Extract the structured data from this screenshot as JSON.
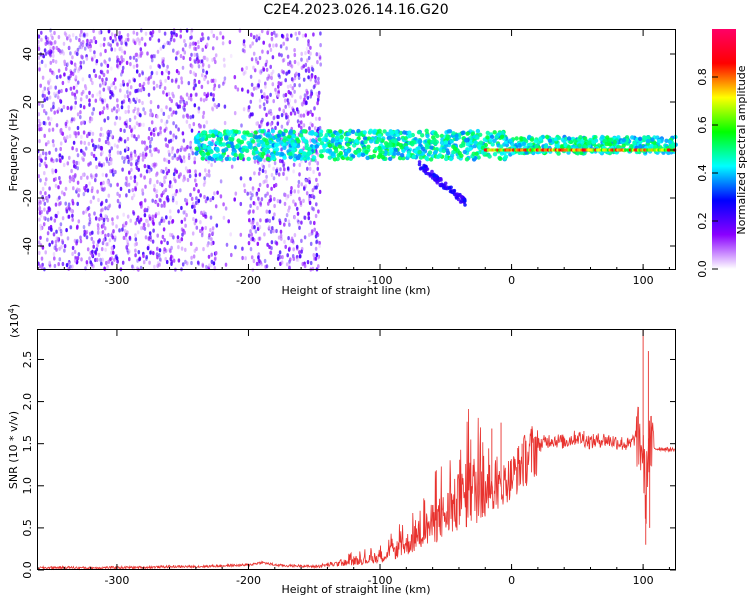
{
  "figure": {
    "title": "C2E4.2023.026.14.16.G20"
  },
  "chart_data": [
    {
      "type": "heatmap",
      "title": "C2E4.2023.026.14.16.G20",
      "xlabel": "Height of straight line (km)",
      "ylabel": "Frequency (Hz)",
      "xlim": [
        -360,
        125
      ],
      "ylim": [
        -50,
        50
      ],
      "x_ticks": [
        -300,
        -200,
        -100,
        0,
        100
      ],
      "x_tick_labels": [
        "-300",
        "-200",
        "-100",
        "0",
        "100"
      ],
      "y_ticks": [
        -40,
        -20,
        0,
        20,
        40
      ],
      "y_tick_labels": [
        "-40",
        "-20",
        "0",
        "20",
        "40"
      ],
      "colorbar": {
        "label": "Normalized spectral amplitude",
        "range": [
          0,
          1
        ],
        "ticks": [
          0.0,
          0.2,
          0.4,
          0.6,
          0.8
        ],
        "tick_labels": [
          "0.0",
          "0.2",
          "0.4",
          "0.6",
          "0.8"
        ],
        "colormap": [
          "#ffffff",
          "#8a00ff",
          "#0000ff",
          "#00ffff",
          "#00ff00",
          "#ffff00",
          "#ff0000",
          "#ff0066"
        ]
      },
      "regions": [
        {
          "name": "noise",
          "x_range": [
            -360,
            -145
          ],
          "f_range": [
            -50,
            50
          ],
          "amplitude": 0.15
        },
        {
          "name": "signal-band",
          "x_range": [
            -240,
            125
          ],
          "f_center": 2,
          "f_halfwidth": 5,
          "amplitude": 0.35
        },
        {
          "name": "carrier",
          "x_range": [
            -20,
            125
          ],
          "f_center": 0,
          "amplitude": 0.9
        },
        {
          "name": "streak",
          "x_range": [
            -70,
            -35
          ],
          "f_range": [
            -22,
            -6
          ],
          "amplitude": 0.2
        }
      ],
      "grid": false
    },
    {
      "type": "line",
      "xlabel": "Height of straight line (km)",
      "ylabel": "SNR (10 * v/v)",
      "y_multiplier": "(x10",
      "y_multiplier_exp": "4",
      "xlim": [
        -360,
        125
      ],
      "ylim": [
        0,
        28500
      ],
      "x_ticks": [
        -300,
        -200,
        -100,
        0,
        100
      ],
      "x_tick_labels": [
        "-300",
        "-200",
        "-100",
        "0",
        "100"
      ],
      "y_ticks": [
        0,
        5000,
        10000,
        15000,
        20000,
        25000
      ],
      "y_tick_labels": [
        "0.0",
        "0.5",
        "1.0",
        "1.5",
        "2.0",
        "2.5"
      ],
      "series": [
        {
          "color": "#e8322e",
          "x": [
            -360,
            -340,
            -320,
            -300,
            -280,
            -260,
            -240,
            -220,
            -200,
            -190,
            -180,
            -170,
            -160,
            -150,
            -140,
            -130,
            -120,
            -110,
            -100,
            -90,
            -80,
            -70,
            -60,
            -50,
            -40,
            -30,
            -20,
            -15,
            -10,
            -5,
            0,
            10,
            20,
            30,
            40,
            50,
            60,
            70,
            80,
            90,
            95,
            100,
            102,
            104,
            106,
            110,
            115,
            120,
            125
          ],
          "values": [
            250,
            300,
            250,
            300,
            300,
            400,
            400,
            500,
            600,
            900,
            600,
            500,
            500,
            400,
            600,
            800,
            1000,
            1200,
            1500,
            2200,
            3000,
            4200,
            5500,
            6500,
            8000,
            9500,
            10000,
            9000,
            9500,
            10500,
            11000,
            13000,
            14800,
            15500,
            15200,
            15800,
            15200,
            15500,
            15200,
            14800,
            16000,
            14000,
            8000,
            15000,
            14600,
            14400,
            14400,
            14300,
            14300
          ],
          "spikes": [
            {
              "x": -15,
              "value": 16800
            },
            {
              "x": -8,
              "value": 17500
            },
            {
              "x": 8,
              "value": 15000
            },
            {
              "x": 55,
              "value": 16500
            },
            {
              "x": 100,
              "value": 28500
            },
            {
              "x": 102,
              "value": 3000
            },
            {
              "x": 104,
              "value": 26000
            },
            {
              "x": 105,
              "value": 5000
            }
          ]
        }
      ],
      "grid": false
    }
  ]
}
